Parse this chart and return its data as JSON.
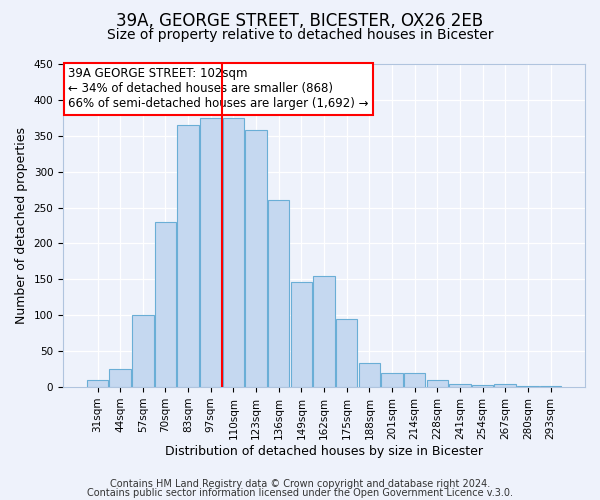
{
  "title": "39A, GEORGE STREET, BICESTER, OX26 2EB",
  "subtitle": "Size of property relative to detached houses in Bicester",
  "xlabel": "Distribution of detached houses by size in Bicester",
  "ylabel": "Number of detached properties",
  "bar_labels": [
    "31sqm",
    "44sqm",
    "57sqm",
    "70sqm",
    "83sqm",
    "97sqm",
    "110sqm",
    "123sqm",
    "136sqm",
    "149sqm",
    "162sqm",
    "175sqm",
    "188sqm",
    "201sqm",
    "214sqm",
    "228sqm",
    "241sqm",
    "254sqm",
    "267sqm",
    "280sqm",
    "293sqm"
  ],
  "bar_heights": [
    10,
    25,
    100,
    230,
    365,
    375,
    375,
    358,
    260,
    147,
    155,
    95,
    33,
    20,
    20,
    10,
    5,
    3,
    5,
    2,
    2
  ],
  "bar_color": "#c5d8f0",
  "bar_edge_color": "#6aaed6",
  "vline_x": 5.5,
  "vline_color": "red",
  "ylim": [
    0,
    450
  ],
  "yticks": [
    0,
    50,
    100,
    150,
    200,
    250,
    300,
    350,
    400,
    450
  ],
  "annotation_text": "39A GEORGE STREET: 102sqm\n← 34% of detached houses are smaller (868)\n66% of semi-detached houses are larger (1,692) →",
  "annotation_box_color": "white",
  "annotation_box_edge": "red",
  "footer_line1": "Contains HM Land Registry data © Crown copyright and database right 2024.",
  "footer_line2": "Contains public sector information licensed under the Open Government Licence v.3.0.",
  "title_fontsize": 12,
  "subtitle_fontsize": 10,
  "xlabel_fontsize": 9,
  "ylabel_fontsize": 9,
  "footer_fontsize": 7,
  "annotation_fontsize": 8.5,
  "tick_fontsize": 7.5,
  "background_color": "#eef2fb"
}
